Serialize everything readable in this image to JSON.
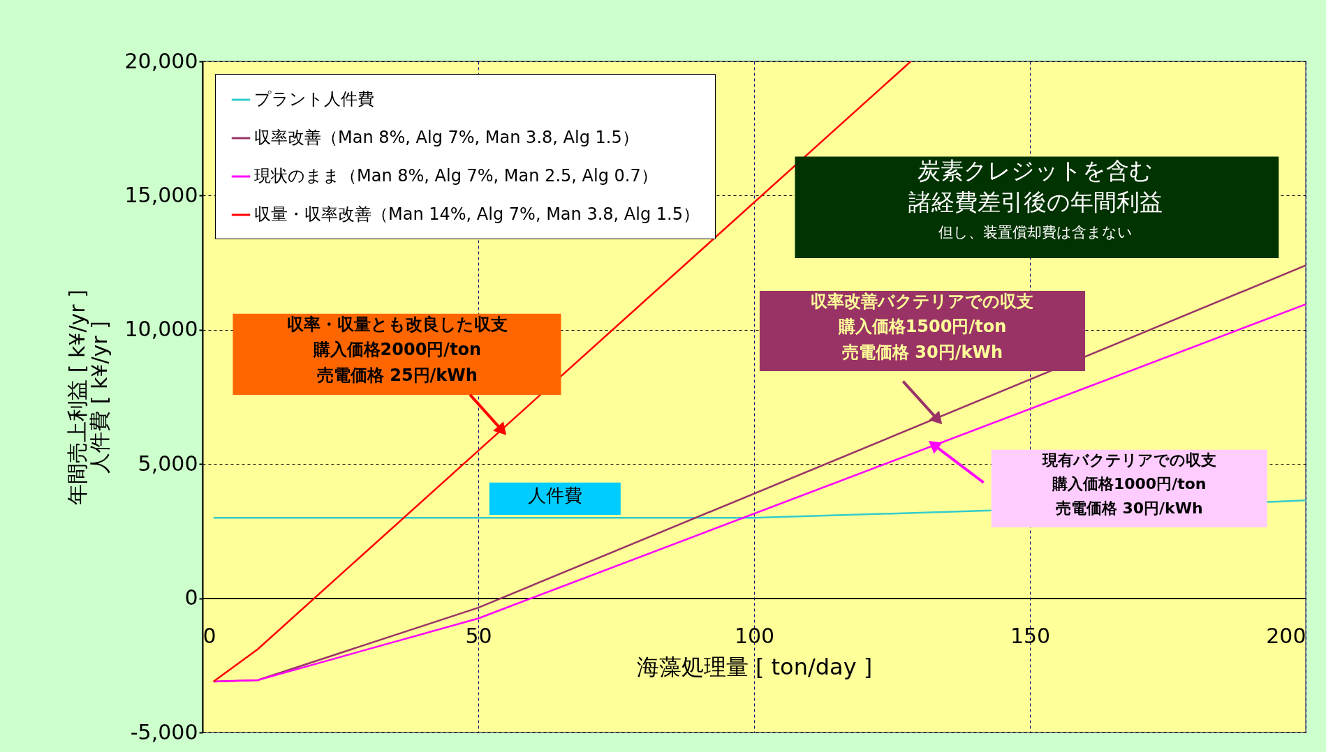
{
  "chart_data": {
    "type": "line",
    "xlabel": "海藻処理量 [ ton/day ]",
    "ylabel": "年間売上利益 [ k¥/yr ]\n人件費 [ k¥/yr ]",
    "xlim": [
      0,
      200
    ],
    "xticks": [
      0,
      50,
      100,
      150,
      200
    ],
    "ylim": [
      -5000,
      20000
    ],
    "yticks": [
      {
        "value": -5000,
        "label": "-5,000"
      },
      0,
      {
        "value": 5000,
        "label": "5,000"
      },
      {
        "value": 10000,
        "label": "10,000"
      },
      {
        "value": 15000,
        "label": "15,000"
      },
      {
        "value": 20000,
        "label": "20,000"
      }
    ],
    "grid": true,
    "legend": "top left",
    "marker": "none",
    "line_style": "solid",
    "series": [
      {
        "name": "プラント人件費",
        "color": "#33cccc",
        "x": [
          2,
          100,
          140,
          195,
          200
        ],
        "values": [
          3000,
          3000,
          3250,
          3600,
          3650
        ]
      },
      {
        "name": "収率改善（Man 8%, Alg 7%, Man 3.8, Alg 1.5）",
        "color": "#993366",
        "x": [
          2,
          10,
          50,
          200
        ],
        "values": [
          -3100,
          -3050,
          -350,
          12400
        ]
      },
      {
        "name": "現状のまま（Man 8%, Alg 7%, Man 2.5, Alg 0.7）",
        "color": "#ff00ff",
        "x": [
          2,
          10,
          50,
          200
        ],
        "values": [
          -3100,
          -3050,
          -750,
          10950
        ]
      },
      {
        "name": "収量・収率改善（Man 14%, Alg 7%, Man 3.8, Alg 1.5）",
        "color": "#ff0000",
        "x": [
          2,
          10,
          128.4
        ],
        "values": [
          -3100,
          -1900,
          20000
        ]
      }
    ],
    "annotations": [
      "炭素クレジットを含む",
      "諸経費差引後の年間利益",
      "但し、装置償却費は含まない",
      "人件費",
      "収率・収量とも改良した収支",
      "購入価格2000円/ton",
      {
        "text": "売電価格 25円/kWh",
        "x": 54.1,
        "y": 6300
      },
      "収率改善バクテリアでの収支",
      "購入価格1500円/ton",
      {
        "text": "売電価格 30円/kWh",
        "x": 133.1,
        "y": 6700
      },
      "現有バクテリアでの収支",
      "購入価格1000円/ton",
      "売電価格 30円/kWh"
    ]
  }
}
